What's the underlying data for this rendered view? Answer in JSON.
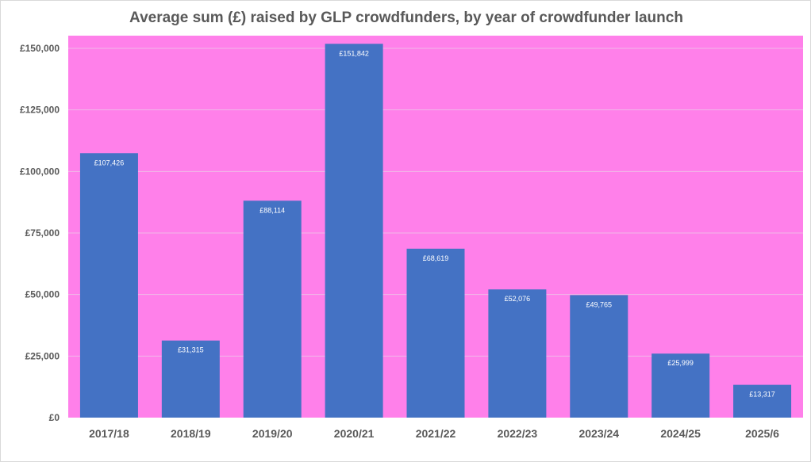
{
  "chart_data": {
    "type": "bar",
    "title": "Average sum (£) raised by GLP crowdfunders, by year of crowdfunder launch",
    "xlabel": "",
    "ylabel": "",
    "categories": [
      "2017/18",
      "2018/19",
      "2019/20",
      "2020/21",
      "2021/22",
      "2022/23",
      "2023/24",
      "2024/25",
      "2025/6"
    ],
    "values": [
      107426,
      31315,
      88114,
      151842,
      68619,
      52076,
      49765,
      25999,
      13317
    ],
    "data_labels": [
      "£107,426",
      "£31,315",
      "£88,114",
      "£151,842",
      "£68,619",
      "£52,076",
      "£49,765",
      "£25,999",
      "£13,317"
    ],
    "ylim": [
      0,
      155000
    ],
    "yticks": [
      0,
      25000,
      50000,
      75000,
      100000,
      125000,
      150000
    ],
    "ytick_labels": [
      "£0",
      "£25,000",
      "£50,000",
      "£75,000",
      "£100,000",
      "£125,000",
      "£150,000"
    ],
    "grid": true,
    "legend": "none",
    "colors": {
      "bar": "#4472C4",
      "plot_background": "#FF80EA",
      "gridline": "#F0B8E8",
      "text": "#595959"
    }
  }
}
